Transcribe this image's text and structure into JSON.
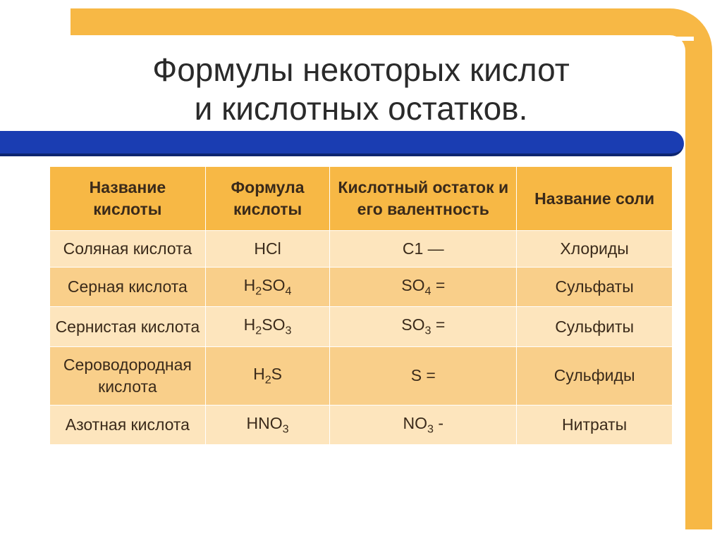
{
  "title_line1": "Формулы некоторых кислот",
  "title_line2": "и кислотных остатков.",
  "colors": {
    "frame": "#f7b845",
    "blue_bar": "#1a3db2",
    "blue_bar_shadow": "#0d2570",
    "header_bg": "#f7b845",
    "row_light": "#fde5bd",
    "row_dark": "#f9cf8a",
    "text": "#3a2a1a",
    "title_text": "#2a2a2a",
    "border": "#ffffff"
  },
  "fontsize": {
    "title": 46,
    "header": 23,
    "cell": 23
  },
  "columns": [
    "Название кислоты",
    "Формула кислоты",
    "Кислотный остаток и его валентность",
    "Название соли"
  ],
  "rows": [
    {
      "name": "Соляная кислота",
      "formula": "HCl",
      "residue": "C1 —",
      "salt": "Хлориды"
    },
    {
      "name": "Серная кислота",
      "formula": "H<sub>2</sub>SO<sub>4</sub>",
      "residue": "SO<sub>4</sub> =",
      "salt": "Сульфаты"
    },
    {
      "name": "Сернистая кислота",
      "formula": "H<sub>2</sub>SO<sub>3</sub>",
      "residue": "SO<sub>3</sub> =",
      "salt": "Сульфиты"
    },
    {
      "name": "Сероводородная кислота",
      "formula": "H<sub>2</sub>S",
      "residue": "S =",
      "salt": "Сульфиды"
    },
    {
      "name": "Азотная кислота",
      "formula": "HNO<sub>3</sub>",
      "residue": "NO<sub>3</sub> -",
      "salt": "Нитраты"
    }
  ]
}
